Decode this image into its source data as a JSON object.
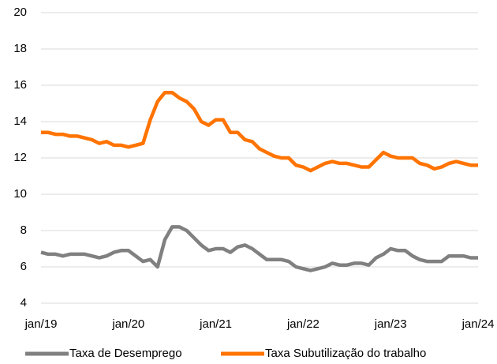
{
  "chart_data": {
    "type": "line",
    "categories": [
      "jan/19",
      null,
      null,
      null,
      null,
      null,
      null,
      null,
      null,
      null,
      null,
      null,
      "jan/20",
      null,
      null,
      null,
      null,
      null,
      null,
      null,
      null,
      null,
      null,
      null,
      "jan/21",
      null,
      null,
      null,
      null,
      null,
      null,
      null,
      null,
      null,
      null,
      null,
      "jan/22",
      null,
      null,
      null,
      null,
      null,
      null,
      null,
      null,
      null,
      null,
      null,
      "jan/23",
      null,
      null,
      null,
      null,
      null,
      null,
      null,
      null,
      null,
      null,
      null,
      "jan/24"
    ],
    "series": [
      {
        "name": "Taxa de Desemprego",
        "color": "#808080",
        "values": [
          6.8,
          6.7,
          6.7,
          6.6,
          6.7,
          6.7,
          6.7,
          6.6,
          6.5,
          6.6,
          6.8,
          6.9,
          6.9,
          6.6,
          6.3,
          6.4,
          6.0,
          7.5,
          8.2,
          8.2,
          8.0,
          7.6,
          7.2,
          6.9,
          7.0,
          7.0,
          6.8,
          7.1,
          7.2,
          7.0,
          6.7,
          6.4,
          6.4,
          6.4,
          6.3,
          6.0,
          5.9,
          5.8,
          5.9,
          6.0,
          6.2,
          6.1,
          6.1,
          6.2,
          6.2,
          6.1,
          6.5,
          6.7,
          7.0,
          6.9,
          6.9,
          6.6,
          6.4,
          6.3,
          6.3,
          6.3,
          6.6,
          6.6,
          6.6,
          6.5,
          6.5
        ]
      },
      {
        "name": "Taxa Subutilização do trabalho",
        "color": "#ff7300",
        "values": [
          13.4,
          13.4,
          13.3,
          13.3,
          13.2,
          13.2,
          13.1,
          13.0,
          12.8,
          12.9,
          12.7,
          12.7,
          12.6,
          12.7,
          12.8,
          14.1,
          15.1,
          15.6,
          15.6,
          15.3,
          15.1,
          14.7,
          14.0,
          13.8,
          14.1,
          14.1,
          13.4,
          13.4,
          13.0,
          12.9,
          12.5,
          12.3,
          12.1,
          12.0,
          12.0,
          11.6,
          11.5,
          11.3,
          11.5,
          11.7,
          11.8,
          11.7,
          11.7,
          11.6,
          11.5,
          11.5,
          11.9,
          12.3,
          12.1,
          12.0,
          12.0,
          12.0,
          11.7,
          11.6,
          11.4,
          11.5,
          11.7,
          11.8,
          11.7,
          11.6,
          11.6
        ]
      }
    ],
    "ylim": [
      4,
      20
    ],
    "yticks": [
      4,
      6,
      8,
      10,
      12,
      14,
      16,
      18,
      20
    ],
    "grid": true,
    "legend": "bottom"
  }
}
